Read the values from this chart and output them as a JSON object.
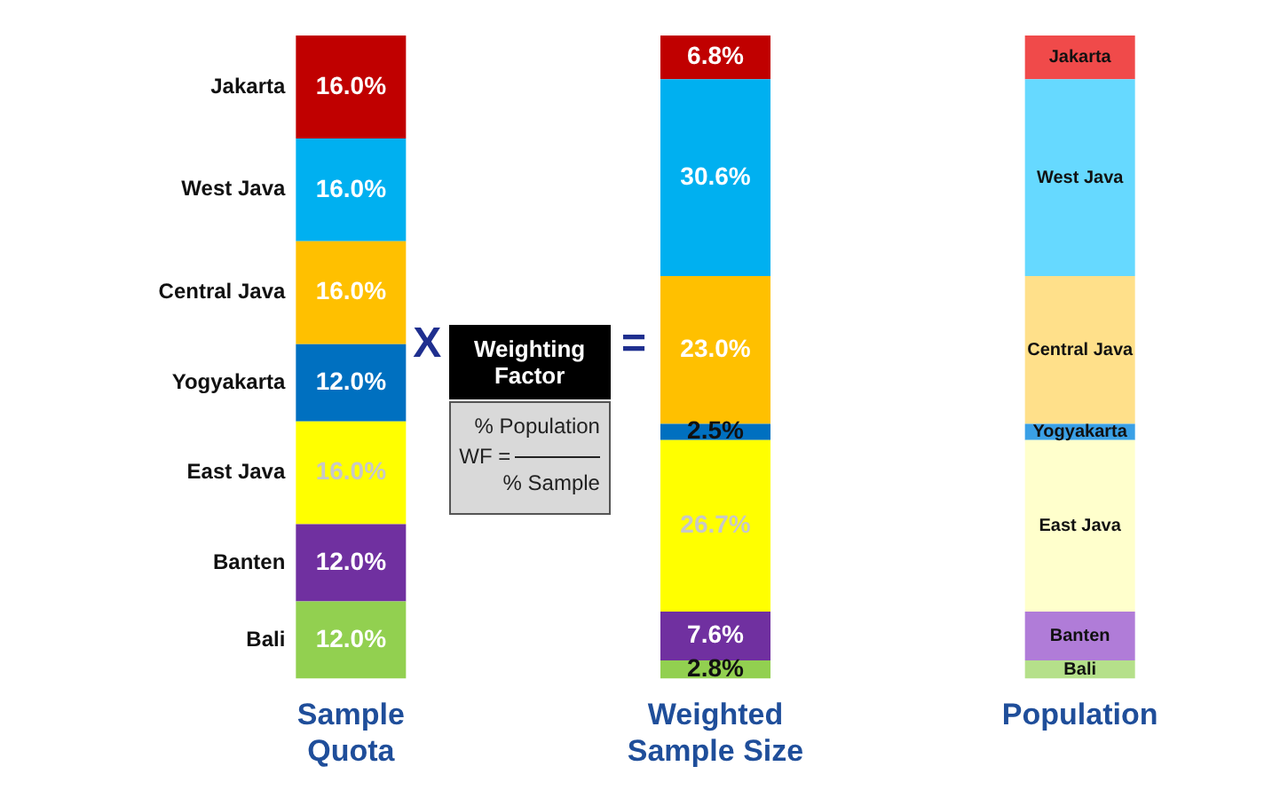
{
  "chart_data": {
    "type": "bar",
    "stacked": true,
    "legend": false,
    "categories": [
      "Sample Quota",
      "Weighted Sample Size",
      "Population"
    ],
    "series": [
      {
        "name": "Bali",
        "colors": [
          "#92d050",
          "#92d050",
          "#b5e08a"
        ],
        "values": [
          12.0,
          2.8,
          2.8
        ],
        "value_labels": [
          "12.0%",
          "2.8%",
          null
        ]
      },
      {
        "name": "Banten",
        "colors": [
          "#7030a0",
          "#7030a0",
          "#b07cd8"
        ],
        "values": [
          12.0,
          7.6,
          7.6
        ],
        "value_labels": [
          "12.0%",
          "7.6%",
          null
        ]
      },
      {
        "name": "East Java",
        "colors": [
          "#ffff00",
          "#ffff00",
          "#ffffcc"
        ],
        "values": [
          16.0,
          26.7,
          26.7
        ],
        "value_labels": [
          "16.0%",
          "26.7%",
          null
        ]
      },
      {
        "name": "Yogyakarta",
        "colors": [
          "#0070c0",
          "#0070c0",
          "#3aa0e6"
        ],
        "values": [
          12.0,
          2.5,
          2.5
        ],
        "value_labels": [
          "12.0%",
          "2.5%",
          null
        ]
      },
      {
        "name": "Central Java",
        "colors": [
          "#ffc000",
          "#ffc000",
          "#ffe08a"
        ],
        "values": [
          16.0,
          23.0,
          23.0
        ],
        "value_labels": [
          "16.0%",
          "23.0%",
          null
        ]
      },
      {
        "name": "West Java",
        "colors": [
          "#00b0f0",
          "#00b0f0",
          "#66d9ff"
        ],
        "values": [
          16.0,
          30.6,
          30.6
        ],
        "value_labels": [
          "16.0%",
          "30.6%",
          null
        ]
      },
      {
        "name": "Jakarta",
        "colors": [
          "#c00000",
          "#c00000",
          "#f04a4a"
        ],
        "values": [
          16.0,
          6.8,
          6.8
        ],
        "value_labels": [
          "16.0%",
          "6.8%",
          null
        ]
      }
    ],
    "annotations": [
      "X",
      "Weighting Factor",
      "=",
      "WF =",
      "% Population",
      "% Sample"
    ]
  }
}
